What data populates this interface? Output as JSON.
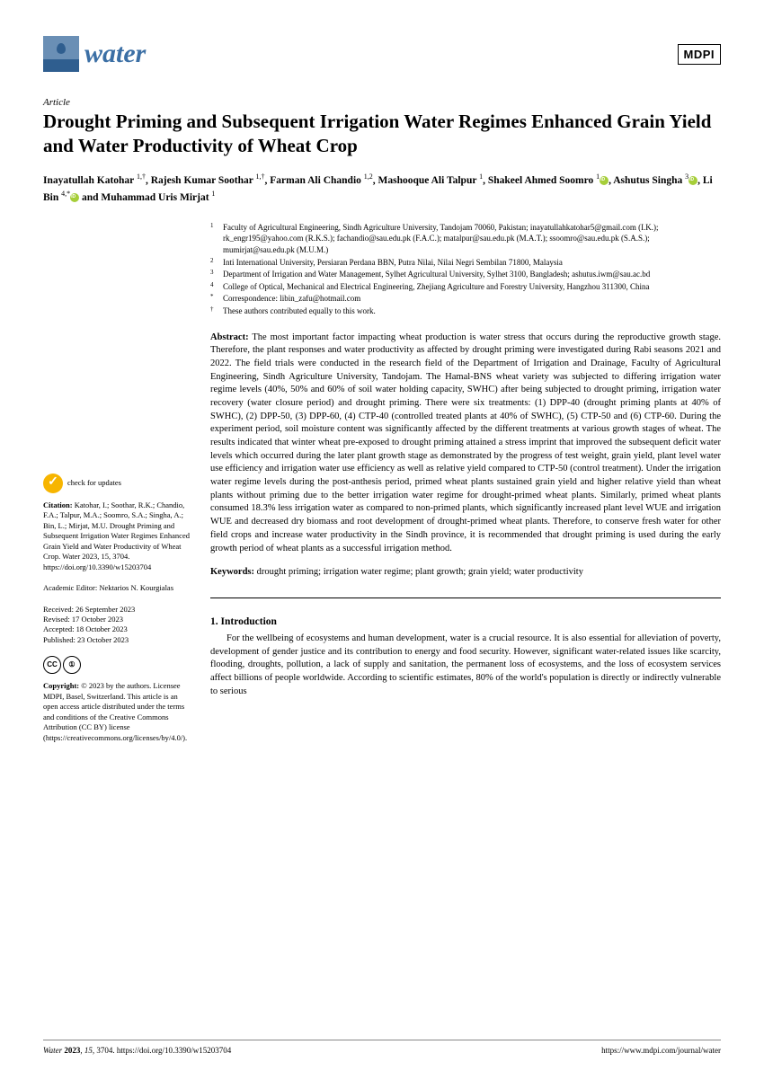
{
  "journal": {
    "name": "water",
    "publisher": "MDPI",
    "logo_colors": {
      "bg": "#6a8fb5",
      "wave": "#2f5e8f"
    }
  },
  "article_type": "Article",
  "title": "Drought Priming and Subsequent Irrigation Water Regimes Enhanced Grain Yield and Water Productivity of Wheat Crop",
  "authors_html": "Inayatullah Katohar <sup>1,†</sup>, Rajesh Kumar Soothar <sup>1,†</sup>, Farman Ali Chandio <sup>1,2</sup>, Mashooque Ali Talpur <sup>1</sup>, Shakeel Ahmed Soomro <sup>1</sup><span class='orcid'></span>, Ashutus Singha <sup>3</sup><span class='orcid'></span>, Li Bin <sup>4,*</sup><span class='orcid'></span> and Muhammad Uris Mirjat <sup>1</sup>",
  "affiliations": [
    {
      "num": "1",
      "text": "Faculty of Agricultural Engineering, Sindh Agriculture University, Tandojam 70060, Pakistan; inayatullahkatohar5@gmail.com (I.K.); rk_engr195@yahoo.com (R.K.S.); fachandio@sau.edu.pk (F.A.C.); matalpur@sau.edu.pk (M.A.T.); ssoomro@sau.edu.pk (S.A.S.); mumirjat@sau.edu.pk (M.U.M.)"
    },
    {
      "num": "2",
      "text": "Inti International University, Persiaran Perdana BBN, Putra Nilai, Nilai Negri Sembilan 71800, Malaysia"
    },
    {
      "num": "3",
      "text": "Department of Irrigation and Water Management, Sylhet Agricultural University, Sylhet 3100, Bangladesh; ashutus.iwm@sau.ac.bd"
    },
    {
      "num": "4",
      "text": "College of Optical, Mechanical and Electrical Engineering, Zhejiang Agriculture and Forestry University, Hangzhou 311300, China"
    },
    {
      "num": "*",
      "text": "Correspondence: libin_zafu@hotmail.com"
    },
    {
      "num": "†",
      "text": "These authors contributed equally to this work."
    }
  ],
  "abstract_label": "Abstract:",
  "abstract": "The most important factor impacting wheat production is water stress that occurs during the reproductive growth stage. Therefore, the plant responses and water productivity as affected by drought priming were investigated during Rabi seasons 2021 and 2022. The field trials were conducted in the research field of the Department of Irrigation and Drainage, Faculty of Agricultural Engineering, Sindh Agriculture University, Tandojam. The Hamal-BNS wheat variety was subjected to differing irrigation water regime levels (40%, 50% and 60% of soil water holding capacity, SWHC) after being subjected to drought priming, irrigation water recovery (water closure period) and drought priming. There were six treatments: (1) DPP-40 (drought priming plants at 40% of SWHC), (2) DPP-50, (3) DPP-60, (4) CTP-40 (controlled treated plants at 40% of SWHC), (5) CTP-50 and (6) CTP-60. During the experiment period, soil moisture content was significantly affected by the different treatments at various growth stages of wheat. The results indicated that winter wheat pre-exposed to drought priming attained a stress imprint that improved the subsequent deficit water levels which occurred during the later plant growth stage as demonstrated by the progress of test weight, grain yield, plant level water use efficiency and irrigation water use efficiency as well as relative yield compared to CTP-50 (control treatment). Under the irrigation water regime levels during the post-anthesis period, primed wheat plants sustained grain yield and higher relative yield than wheat plants without priming due to the better irrigation water regime for drought-primed wheat plants. Similarly, primed wheat plants consumed 18.3% less irrigation water as compared to non-primed plants, which significantly increased plant level WUE and irrigation WUE and decreased dry biomass and root development of drought-primed wheat plants. Therefore, to conserve fresh water for other field crops and increase water productivity in the Sindh province, it is recommended that drought priming is used during the early growth period of wheat plants as a successful irrigation method.",
  "keywords_label": "Keywords:",
  "keywords": "drought priming; irrigation water regime; plant growth; grain yield; water productivity",
  "sidebar": {
    "check_updates": "check for updates",
    "citation_label": "Citation:",
    "citation": "Katohar, I.; Soothar, R.K.; Chandio, F.A.; Talpur, M.A.; Soomro, S.A.; Singha, A.; Bin, L.; Mirjat, M.U. Drought Priming and Subsequent Irrigation Water Regimes Enhanced Grain Yield and Water Productivity of Wheat Crop. Water 2023, 15, 3704. https://doi.org/10.3390/w15203704",
    "editor_label": "Academic Editor:",
    "editor": "Nektarios N. Kourgialas",
    "received": "Received: 26 September 2023",
    "revised": "Revised: 17 October 2023",
    "accepted": "Accepted: 18 October 2023",
    "published": "Published: 23 October 2023",
    "copyright_label": "Copyright:",
    "copyright": "© 2023 by the authors. Licensee MDPI, Basel, Switzerland. This article is an open access article distributed under the terms and conditions of the Creative Commons Attribution (CC BY) license (https://creativecommons.org/licenses/by/4.0/)."
  },
  "intro": {
    "heading": "1. Introduction",
    "text": "For the wellbeing of ecosystems and human development, water is a crucial resource. It is also essential for alleviation of poverty, development of gender justice and its contribution to energy and food security. However, significant water-related issues like scarcity, flooding, droughts, pollution, a lack of supply and sanitation, the permanent loss of ecosystems, and the loss of ecosystem services affect billions of people worldwide. According to scientific estimates, 80% of the world's population is directly or indirectly vulnerable to serious"
  },
  "footer": {
    "left": "Water 2023, 15, 3704. https://doi.org/10.3390/w15203704",
    "right": "https://www.mdpi.com/journal/water"
  }
}
